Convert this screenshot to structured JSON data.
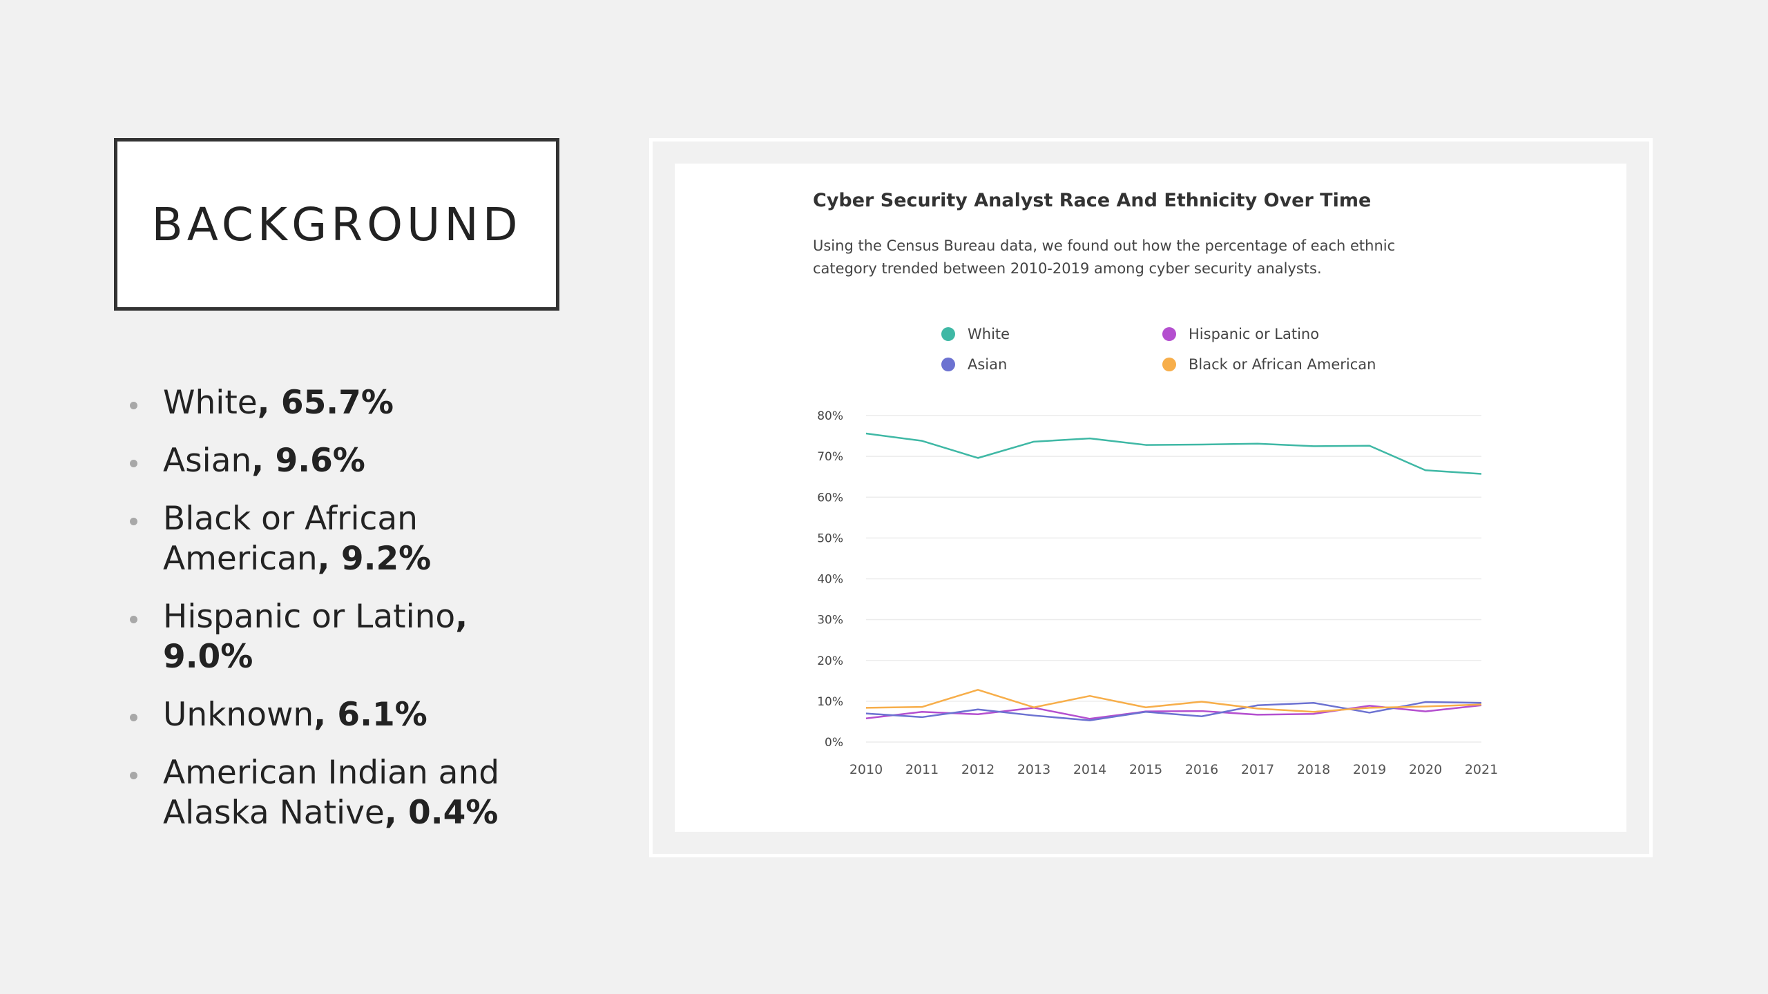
{
  "slide": {
    "title": "BACKGROUND",
    "bullets": [
      {
        "label": "White",
        "value": ", 65.7%"
      },
      {
        "label": "Asian",
        "value": ", 9.6%"
      },
      {
        "label": "Black or African American",
        "value": ", 9.2%"
      },
      {
        "label": "Hispanic or Latino",
        "value": ", 9.0%"
      },
      {
        "label": "Unknown",
        "value": ", 6.1%"
      },
      {
        "label": "American Indian and Alaska Native",
        "value": ", 0.4%"
      }
    ]
  },
  "chart_data": {
    "type": "line",
    "title": "Cyber Security Analyst Race And Ethnicity Over Time",
    "subtitle": "Using the Census Bureau data, we found out how the percentage of each ethnic category trended between 2010-2019 among cyber security analysts.",
    "x": [
      "2010",
      "2011",
      "2012",
      "2013",
      "2014",
      "2015",
      "2016",
      "2017",
      "2018",
      "2019",
      "2020",
      "2021"
    ],
    "y_ticks": [
      "0%",
      "10%",
      "20%",
      "30%",
      "40%",
      "50%",
      "60%",
      "70%",
      "80%"
    ],
    "ylim": [
      0,
      80
    ],
    "grid": true,
    "legend_position": "top",
    "series": [
      {
        "name": "White",
        "color": "#3fb8a5",
        "values": [
          75.6,
          73.8,
          69.6,
          73.6,
          74.4,
          72.8,
          72.9,
          73.1,
          72.5,
          72.6,
          66.6,
          65.7
        ]
      },
      {
        "name": "Hispanic or Latino",
        "color": "#b44fcf",
        "values": [
          5.8,
          7.4,
          6.8,
          8.4,
          5.7,
          7.5,
          7.6,
          6.7,
          6.9,
          8.9,
          7.5,
          9.0
        ]
      },
      {
        "name": "Asian",
        "color": "#6c72d1",
        "values": [
          7.0,
          6.1,
          8.0,
          6.5,
          5.3,
          7.4,
          6.3,
          9.0,
          9.6,
          7.2,
          9.8,
          9.6
        ]
      },
      {
        "name": "Black or African American",
        "color": "#f7ae4a",
        "values": [
          8.4,
          8.6,
          12.8,
          8.5,
          11.3,
          8.5,
          9.9,
          8.2,
          7.4,
          8.4,
          8.7,
          9.2
        ]
      }
    ]
  }
}
